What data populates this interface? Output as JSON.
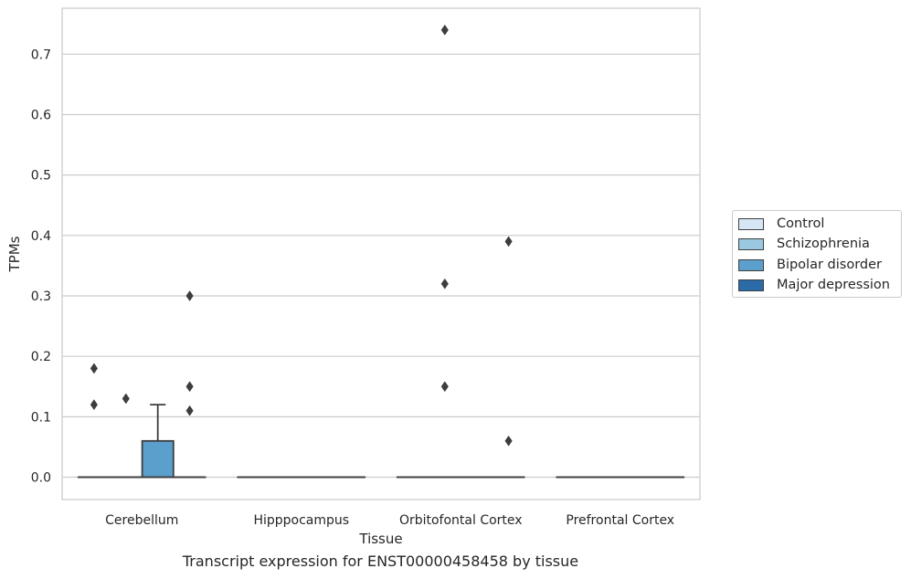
{
  "chart_data": {
    "type": "box",
    "title": "",
    "caption": "Transcript expression for ENST00000458458 by tissue",
    "xlabel": "Tissue",
    "ylabel": "TPMs",
    "ylim": [
      -0.037,
      0.776
    ],
    "yticks": [
      0.0,
      0.1,
      0.2,
      0.3,
      0.4,
      0.5,
      0.6,
      0.7
    ],
    "ytick_labels": [
      "0.0",
      "0.1",
      "0.2",
      "0.3",
      "0.4",
      "0.5",
      "0.6",
      "0.7"
    ],
    "grid": true,
    "legend_position": "right",
    "categories": [
      "Cerebellum",
      "Hipppocampus",
      "Orbitofontal Cortex",
      "Prefrontal Cortex"
    ],
    "series": [
      {
        "name": "Control",
        "color": "#d6e6f4",
        "boxes": [
          {
            "q1": 0,
            "median": 0,
            "q3": 0,
            "whisker_low": 0,
            "whisker_high": 0,
            "outliers": [
              0.12,
              0.18
            ]
          },
          {
            "q1": 0,
            "median": 0,
            "q3": 0,
            "whisker_low": 0,
            "whisker_high": 0,
            "outliers": []
          },
          {
            "q1": 0,
            "median": 0,
            "q3": 0,
            "whisker_low": 0,
            "whisker_high": 0,
            "outliers": []
          },
          {
            "q1": 0,
            "median": 0,
            "q3": 0,
            "whisker_low": 0,
            "whisker_high": 0,
            "outliers": []
          }
        ]
      },
      {
        "name": "Schizophrenia",
        "color": "#9ac8e0",
        "boxes": [
          {
            "q1": 0,
            "median": 0,
            "q3": 0,
            "whisker_low": 0,
            "whisker_high": 0,
            "outliers": [
              0.13
            ]
          },
          {
            "q1": 0,
            "median": 0,
            "q3": 0,
            "whisker_low": 0,
            "whisker_high": 0,
            "outliers": []
          },
          {
            "q1": 0,
            "median": 0,
            "q3": 0,
            "whisker_low": 0,
            "whisker_high": 0,
            "outliers": [
              0.15,
              0.32,
              0.74
            ]
          },
          {
            "q1": 0,
            "median": 0,
            "q3": 0,
            "whisker_low": 0,
            "whisker_high": 0,
            "outliers": []
          }
        ]
      },
      {
        "name": "Bipolar disorder",
        "color": "#5b9fcc",
        "boxes": [
          {
            "q1": 0,
            "median": 0,
            "q3": 0.06,
            "whisker_low": 0,
            "whisker_high": 0.12,
            "outliers": []
          },
          {
            "q1": 0,
            "median": 0,
            "q3": 0,
            "whisker_low": 0,
            "whisker_high": 0,
            "outliers": []
          },
          {
            "q1": 0,
            "median": 0,
            "q3": 0,
            "whisker_low": 0,
            "whisker_high": 0,
            "outliers": []
          },
          {
            "q1": 0,
            "median": 0,
            "q3": 0,
            "whisker_low": 0,
            "whisker_high": 0,
            "outliers": []
          }
        ]
      },
      {
        "name": "Major depression",
        "color": "#2b6ca8",
        "boxes": [
          {
            "q1": 0,
            "median": 0,
            "q3": 0,
            "whisker_low": 0,
            "whisker_high": 0,
            "outliers": [
              0.11,
              0.15,
              0.3
            ]
          },
          {
            "q1": 0,
            "median": 0,
            "q3": 0,
            "whisker_low": 0,
            "whisker_high": 0,
            "outliers": []
          },
          {
            "q1": 0,
            "median": 0,
            "q3": 0,
            "whisker_low": 0,
            "whisker_high": 0,
            "outliers": [
              0.06,
              0.39
            ]
          },
          {
            "q1": 0,
            "median": 0,
            "q3": 0,
            "whisker_low": 0,
            "whisker_high": 0,
            "outliers": []
          }
        ]
      }
    ]
  }
}
